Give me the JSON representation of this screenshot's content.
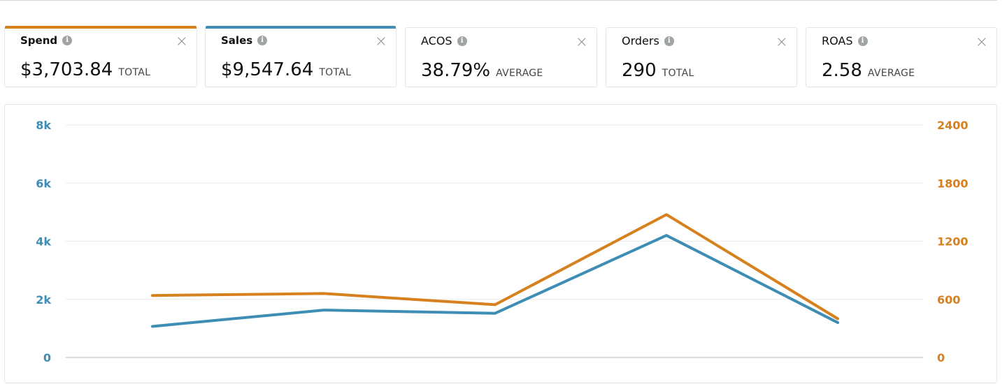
{
  "metrics": [
    {
      "name": "Spend",
      "value": "$3,703.84",
      "unit": "TOTAL",
      "selected": true,
      "accent": "#d7801e"
    },
    {
      "name": "Sales",
      "value": "$9,547.64",
      "unit": "TOTAL",
      "selected": true,
      "accent": "#3d8db5"
    },
    {
      "name": "ACOS",
      "value": "38.79%",
      "unit": "AVERAGE",
      "selected": false
    },
    {
      "name": "Orders",
      "value": "290",
      "unit": "TOTAL",
      "selected": false
    },
    {
      "name": "ROAS",
      "value": "2.58",
      "unit": "AVERAGE",
      "selected": false
    }
  ],
  "icons": {
    "info": "info-icon",
    "close": "close-icon"
  },
  "chart_data": {
    "type": "line",
    "x": [
      1,
      2,
      3,
      4,
      5
    ],
    "left_axis": {
      "ticks": [
        "0",
        "2k",
        "4k",
        "6k",
        "8k"
      ],
      "ylim": [
        0,
        8000
      ],
      "color": "#3d8db5"
    },
    "right_axis": {
      "ticks": [
        "0",
        "600",
        "1200",
        "1800",
        "2400"
      ],
      "ylim": [
        0,
        2400
      ],
      "color": "#d7801e"
    },
    "grid": true,
    "series": [
      {
        "name": "Sales",
        "axis": "left",
        "color": "#3d8db5",
        "values": [
          1070,
          1630,
          1520,
          4200,
          1200
        ]
      },
      {
        "name": "Spend",
        "axis": "right",
        "color": "#d7801e",
        "values": [
          640,
          660,
          545,
          1475,
          400
        ]
      }
    ]
  }
}
